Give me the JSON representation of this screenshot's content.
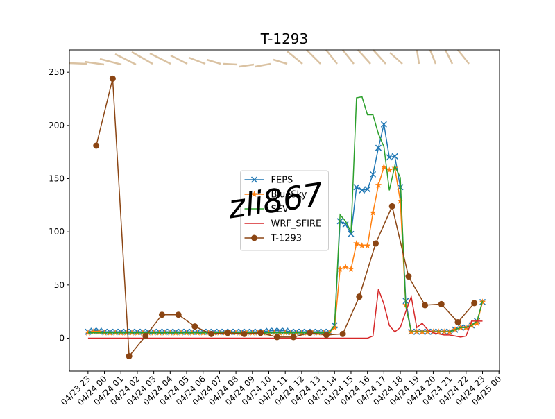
{
  "chart_data": {
    "type": "line",
    "title": "T-1293",
    "watermark": "zli867",
    "legend": "center",
    "x": [
      "04/23 23:00",
      "04/23 23:20",
      "04/23 23:40",
      "04/24 00:00",
      "04/24 00:20",
      "04/24 00:40",
      "04/24 01:00",
      "04/24 01:20",
      "04/24 01:40",
      "04/24 02:00",
      "04/24 02:20",
      "04/24 02:40",
      "04/24 03:00",
      "04/24 03:20",
      "04/24 03:40",
      "04/24 04:00",
      "04/24 04:20",
      "04/24 04:40",
      "04/24 05:00",
      "04/24 05:20",
      "04/24 05:40",
      "04/24 06:00",
      "04/24 06:20",
      "04/24 06:40",
      "04/24 07:00",
      "04/24 07:20",
      "04/24 07:40",
      "04/24 08:00",
      "04/24 08:20",
      "04/24 08:40",
      "04/24 09:00",
      "04/24 09:20",
      "04/24 09:40",
      "04/24 10:00",
      "04/24 10:20",
      "04/24 10:40",
      "04/24 11:00",
      "04/24 11:20",
      "04/24 11:40",
      "04/24 12:00",
      "04/24 12:20",
      "04/24 12:40",
      "04/24 13:00",
      "04/24 13:20",
      "04/24 13:40",
      "04/24 14:00",
      "04/24 14:20",
      "04/24 14:40",
      "04/24 15:00",
      "04/24 15:20",
      "04/24 15:40",
      "04/24 16:00",
      "04/24 16:20",
      "04/24 16:40",
      "04/24 17:00",
      "04/24 17:20",
      "04/24 17:40",
      "04/24 18:00",
      "04/24 18:20",
      "04/24 18:40",
      "04/24 19:00",
      "04/24 19:20",
      "04/24 19:40",
      "04/24 20:00",
      "04/24 20:20",
      "04/24 20:40",
      "04/24 21:00",
      "04/24 21:20",
      "04/24 21:40",
      "04/24 22:00",
      "04/24 22:20",
      "04/24 22:40",
      "04/24 23:00"
    ],
    "series": [
      {
        "name": "FEPS",
        "color": "#1f77b4",
        "marker": "x",
        "values": [
          6,
          7,
          7,
          6,
          6,
          6,
          6,
          6,
          6,
          6,
          6,
          6,
          6,
          6,
          6,
          6,
          6,
          6,
          6,
          6,
          6,
          6,
          6,
          6,
          6,
          6,
          6,
          6,
          6,
          6,
          6,
          6,
          6,
          7,
          7,
          7,
          7,
          6,
          6,
          6,
          6,
          6,
          6,
          6,
          6,
          12,
          110,
          107,
          98,
          142,
          139,
          140,
          154,
          179,
          201,
          170,
          171,
          142,
          35,
          6,
          6,
          6,
          6,
          6,
          6,
          6,
          6,
          8,
          10,
          10,
          12,
          16,
          34
        ]
      },
      {
        "name": "BlueSky",
        "color": "#ff7f0e",
        "marker": "star",
        "values": [
          5,
          6,
          6,
          5,
          5,
          5,
          5,
          5,
          5,
          5,
          5,
          5,
          5,
          5,
          5,
          5,
          5,
          5,
          5,
          5,
          5,
          5,
          5,
          5,
          5,
          5,
          5,
          5,
          5,
          5,
          5,
          5,
          5,
          5,
          5,
          5,
          5,
          5,
          5,
          5,
          5,
          5,
          5,
          5,
          5,
          10,
          65,
          67,
          65,
          89,
          87,
          87,
          118,
          144,
          161,
          158,
          160,
          129,
          31,
          6,
          6,
          6,
          6,
          6,
          6,
          6,
          6,
          8,
          10,
          10,
          12,
          14,
          34
        ]
      },
      {
        "name": "SEV",
        "color": "#2ca02c",
        "values": [
          5,
          5,
          5,
          5,
          5,
          5,
          5,
          5,
          5,
          5,
          5,
          5,
          5,
          5,
          5,
          5,
          5,
          5,
          5,
          5,
          5,
          5,
          5,
          5,
          5,
          5,
          5,
          5,
          5,
          5,
          5,
          5,
          5,
          5,
          5,
          5,
          5,
          5,
          5,
          5,
          5,
          5,
          5,
          5,
          5,
          12,
          116,
          110,
          100,
          226,
          227,
          210,
          210,
          192,
          180,
          139,
          162,
          151,
          30,
          6,
          6,
          6,
          6,
          6,
          6,
          6,
          6,
          8,
          10,
          10,
          12,
          16,
          35
        ]
      },
      {
        "name": "WRF_SFIRE",
        "color": "#d62728",
        "values": [
          0,
          0,
          0,
          0,
          0,
          0,
          0,
          0,
          0,
          0,
          0,
          0,
          0,
          0,
          0,
          0,
          0,
          0,
          0,
          0,
          0,
          0,
          0,
          0,
          0,
          0,
          0,
          0,
          0,
          0,
          0,
          0,
          0,
          0,
          0,
          0,
          0,
          0,
          0,
          0,
          0,
          0,
          0,
          0,
          0,
          0,
          0,
          0,
          0,
          0,
          0,
          0,
          2,
          46,
          32,
          12,
          6,
          10,
          25,
          39,
          10,
          14,
          8,
          5,
          4,
          3,
          3,
          2,
          1,
          2,
          16,
          16,
          16
        ]
      },
      {
        "name": "T-1293",
        "color": "#8b4513",
        "marker": "circle",
        "x": [
          "04/23 23:30",
          "04/24 00:30",
          "04/24 01:30",
          "04/24 02:30",
          "04/24 03:30",
          "04/24 04:30",
          "04/24 05:30",
          "04/24 06:30",
          "04/24 07:30",
          "04/24 08:30",
          "04/24 09:30",
          "04/24 10:30",
          "04/24 11:30",
          "04/24 12:30",
          "04/24 13:30",
          "04/24 14:30",
          "04/24 15:30",
          "04/24 16:30",
          "04/24 17:30",
          "04/24 18:30",
          "04/24 19:30",
          "04/24 20:30",
          "04/24 21:30",
          "04/24 22:30"
        ],
        "values": [
          181,
          244,
          -17,
          2,
          22,
          22,
          11,
          4,
          5,
          4,
          5,
          1,
          1,
          5,
          3,
          4,
          39,
          89,
          124,
          58,
          31,
          32,
          15,
          33
        ]
      }
    ],
    "xlim": [
      "04/23 21:52",
      "04/25 00:02"
    ],
    "xticks": [
      "04/23 23",
      "04/24 00",
      "04/24 01",
      "04/24 02",
      "04/24 03",
      "04/24 04",
      "04/24 05",
      "04/24 06",
      "04/24 07",
      "04/24 08",
      "04/24 09",
      "04/24 10",
      "04/24 11",
      "04/24 12",
      "04/24 13",
      "04/24 14",
      "04/24 15",
      "04/24 16",
      "04/24 17",
      "04/24 18",
      "04/24 19",
      "04/24 20",
      "04/24 21",
      "04/24 22",
      "04/24 23",
      "04/25 00"
    ],
    "ylim": [
      -31,
      271
    ],
    "yticks": [
      0,
      50,
      100,
      150,
      200,
      250
    ]
  }
}
